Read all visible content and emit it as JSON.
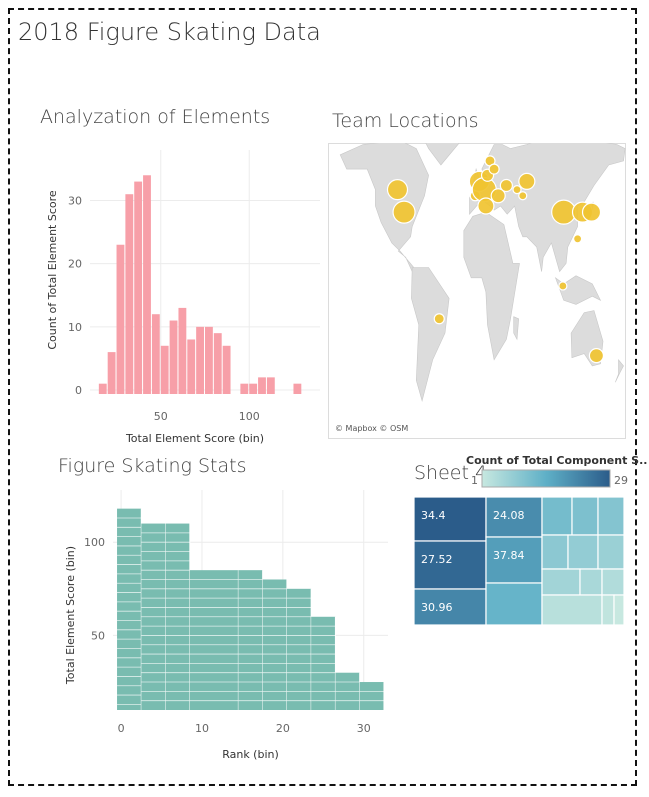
{
  "dashboard": {
    "title": "2018 Figure Skating Data"
  },
  "sheets": {
    "elements": {
      "title": "Analyzation of Elements"
    },
    "locations": {
      "title": "Team Locations",
      "attribution": "© Mapbox © OSM"
    },
    "stats": {
      "title": "Figure Skating Stats"
    },
    "sheet4": {
      "title": "Sheet 4",
      "legend_title": "Count of Total Component S..",
      "legend_min": "1",
      "legend_max": "29"
    }
  },
  "colors": {
    "histogram": "#f79fa8",
    "stats": "#79bcb0",
    "map_land": "#dcdcdc",
    "map_marker": "#f0c330",
    "treemap_dark": "#2b5c8a",
    "treemap_light": "#c7e8e0"
  },
  "chart_data": [
    {
      "type": "bar",
      "title": "Analyzation of Elements",
      "xlabel": "Total Element Score (bin)",
      "ylabel": "Count of Total Element Score",
      "x_ticks": [
        "50",
        "100"
      ],
      "y_ticks": [
        "0",
        "10",
        "20",
        "30"
      ],
      "xlim": [
        10,
        140
      ],
      "ylim": [
        0,
        38
      ],
      "bin_width": 5,
      "bins": [
        {
          "start": 15,
          "count": 1
        },
        {
          "start": 20,
          "count": 6
        },
        {
          "start": 25,
          "count": 23
        },
        {
          "start": 30,
          "count": 31
        },
        {
          "start": 35,
          "count": 33
        },
        {
          "start": 40,
          "count": 34
        },
        {
          "start": 45,
          "count": 12
        },
        {
          "start": 50,
          "count": 7
        },
        {
          "start": 55,
          "count": 11
        },
        {
          "start": 60,
          "count": 13
        },
        {
          "start": 65,
          "count": 8
        },
        {
          "start": 70,
          "count": 10
        },
        {
          "start": 75,
          "count": 10
        },
        {
          "start": 80,
          "count": 9
        },
        {
          "start": 85,
          "count": 7
        },
        {
          "start": 95,
          "count": 1
        },
        {
          "start": 100,
          "count": 1
        },
        {
          "start": 105,
          "count": 2
        },
        {
          "start": 110,
          "count": 2
        },
        {
          "start": 125,
          "count": 1
        }
      ]
    },
    {
      "type": "bar",
      "title": "Figure Skating Stats",
      "xlabel": "Rank (bin)",
      "ylabel": "Total Element Score (bin)",
      "x_ticks": [
        "0",
        "10",
        "20",
        "30"
      ],
      "y_ticks": [
        "50",
        "100"
      ],
      "xlim": [
        -1,
        33
      ],
      "ylim": [
        10,
        128
      ],
      "bars": [
        {
          "x0": -0.5,
          "x1": 2.5,
          "value": 118
        },
        {
          "x0": 2.5,
          "x1": 5.5,
          "value": 110
        },
        {
          "x0": 5.5,
          "x1": 8.5,
          "value": 110
        },
        {
          "x0": 8.5,
          "x1": 14.5,
          "value": 85
        },
        {
          "x0": 14.5,
          "x1": 17.5,
          "value": 85
        },
        {
          "x0": 17.5,
          "x1": 20.5,
          "value": 80
        },
        {
          "x0": 20.5,
          "x1": 23.5,
          "value": 75
        },
        {
          "x0": 23.5,
          "x1": 26.5,
          "value": 60
        },
        {
          "x0": 26.5,
          "x1": 29.5,
          "value": 30
        },
        {
          "x0": 29.5,
          "x1": 32.5,
          "value": 25
        }
      ]
    },
    {
      "type": "scatter",
      "title": "Team Locations",
      "points": [
        {
          "lon": -98,
          "lat": 48,
          "size": 10
        },
        {
          "lon": -90,
          "lat": 37,
          "size": 11
        },
        {
          "lon": -47,
          "lat": -15,
          "size": 5
        },
        {
          "lon": -3,
          "lat": 45,
          "size": 5
        },
        {
          "lon": 2,
          "lat": 52,
          "size": 10
        },
        {
          "lon": 8,
          "lat": 48,
          "size": 12
        },
        {
          "lon": 12,
          "lat": 55,
          "size": 6
        },
        {
          "lon": 15,
          "lat": 62,
          "size": 5
        },
        {
          "lon": 20,
          "lat": 58,
          "size": 5
        },
        {
          "lon": 25,
          "lat": 45,
          "size": 7
        },
        {
          "lon": 10,
          "lat": 40,
          "size": 8
        },
        {
          "lon": 35,
          "lat": 50,
          "size": 6
        },
        {
          "lon": 48,
          "lat": 48,
          "size": 4
        },
        {
          "lon": 60,
          "lat": 52,
          "size": 8
        },
        {
          "lon": 55,
          "lat": 45,
          "size": 4
        },
        {
          "lon": 105,
          "lat": 37,
          "size": 12
        },
        {
          "lon": 128,
          "lat": 37,
          "size": 10
        },
        {
          "lon": 139,
          "lat": 37,
          "size": 9
        },
        {
          "lon": 122,
          "lat": 24,
          "size": 4
        },
        {
          "lon": 104,
          "lat": 1,
          "size": 4
        },
        {
          "lon": 145,
          "lat": -33,
          "size": 7
        }
      ]
    },
    {
      "type": "heatmap",
      "title": "Sheet 4",
      "cells": [
        {
          "label": "34.4",
          "value": 29
        },
        {
          "label": "27.52",
          "value": 27
        },
        {
          "label": "30.96",
          "value": 22
        },
        {
          "label": "24.08",
          "value": 21
        },
        {
          "label": "37.84",
          "value": 18
        },
        {
          "label": "",
          "value": 14
        },
        {
          "label": "",
          "value": 12
        },
        {
          "label": "",
          "value": 11
        },
        {
          "label": "",
          "value": 10
        },
        {
          "label": "",
          "value": 9
        },
        {
          "label": "",
          "value": 8
        },
        {
          "label": "",
          "value": 7
        },
        {
          "label": "",
          "value": 6
        },
        {
          "label": "",
          "value": 5
        },
        {
          "label": "",
          "value": 4
        },
        {
          "label": "",
          "value": 3
        },
        {
          "label": "",
          "value": 2
        },
        {
          "label": "",
          "value": 1
        }
      ]
    }
  ]
}
